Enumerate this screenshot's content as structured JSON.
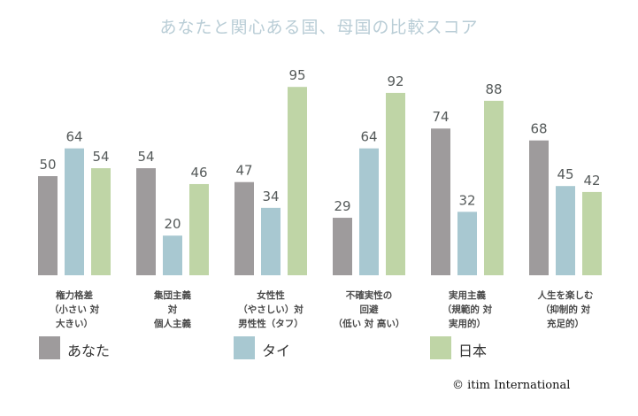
{
  "chart_data": {
    "type": "bar",
    "title": "あなたと関心ある国、母国の比較スコア",
    "categories": [
      [
        "権力格差",
        "（小さい 対",
        "大きい）"
      ],
      [
        "集団主義",
        "対",
        "個人主義"
      ],
      [
        "女性性",
        "（やさしい）対",
        "男性性（タフ）"
      ],
      [
        "不確実性の",
        "回避",
        "（低い 対 高い）"
      ],
      [
        "実用主義",
        "（規範的 対",
        "実用的）"
      ],
      [
        "人生を楽しむ",
        "（抑制的 対",
        "充足的）"
      ]
    ],
    "series": [
      {
        "name": "あなた",
        "color": "#9e9b9c",
        "values": [
          50,
          54,
          47,
          29,
          74,
          68
        ]
      },
      {
        "name": "タイ",
        "color": "#a8c8d1",
        "values": [
          64,
          20,
          34,
          64,
          32,
          45
        ]
      },
      {
        "name": "日本",
        "color": "#bfd5a6",
        "values": [
          54,
          46,
          95,
          92,
          88,
          42
        ]
      }
    ],
    "ylim": [
      0,
      100
    ],
    "grid": false,
    "legend_position": "bottom"
  },
  "copyright": "© itim International"
}
